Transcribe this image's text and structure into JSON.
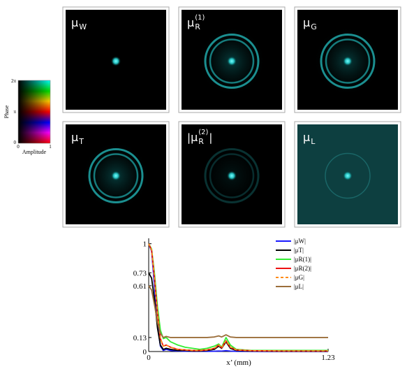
{
  "panels": [
    {
      "label": {
        "base": "μ",
        "sub": "W"
      }
    },
    {
      "label": {
        "base": "μ",
        "sub": "R",
        "sup": "(1)"
      }
    },
    {
      "label": {
        "base": "μ",
        "sub": "G"
      }
    },
    {
      "label": {
        "base": "μ",
        "sub": "T"
      }
    },
    {
      "label": {
        "open": "|",
        "base": "μ",
        "sub": "R",
        "sup": "(2)",
        "close": "|"
      }
    },
    {
      "label": {
        "base": "μ",
        "sub": "L"
      }
    }
  ],
  "colorbar": {
    "ylabel": "Phase",
    "xlabel": "Amplitude",
    "top": "2π",
    "middle": "π",
    "bottom": "0",
    "left": "0",
    "right": "1"
  },
  "chart_data": {
    "type": "line",
    "xlabel": "x’ (mm)",
    "x": [
      0,
      0.02,
      0.04,
      0.06,
      0.08,
      0.1,
      0.12,
      0.15,
      0.2,
      0.25,
      0.3,
      0.35,
      0.4,
      0.45,
      0.48,
      0.5,
      0.53,
      0.56,
      0.6,
      0.7,
      0.8,
      0.9,
      1.0,
      1.1,
      1.23
    ],
    "xlim": [
      0,
      1.23
    ],
    "xticks": [
      0,
      1.23
    ],
    "ylim": [
      0,
      1.05
    ],
    "yticks": [
      0,
      0.13,
      0.61,
      0.73,
      1
    ],
    "series": [
      {
        "name": "|μW|",
        "color": "#1a1aff",
        "values": [
          1,
          0.93,
          0.6,
          0.25,
          0.05,
          0.01,
          0.02,
          0.01,
          0.005,
          0.003,
          0.002,
          0.002,
          0.002,
          0.003,
          0.005,
          0.004,
          0.008,
          0.004,
          0.002,
          0.001,
          0,
          0,
          0,
          0,
          0
        ]
      },
      {
        "name": "|μT|",
        "color": "#000000",
        "values": [
          0.73,
          0.68,
          0.48,
          0.22,
          0.06,
          0.02,
          0.03,
          0.02,
          0.01,
          0.01,
          0.005,
          0.005,
          0.01,
          0.02,
          0.05,
          0.03,
          0.09,
          0.03,
          0.01,
          0.005,
          0.004,
          0.003,
          0.003,
          0.003,
          0.003
        ]
      },
      {
        "name": "|μR(1)|",
        "color": "#33ee33",
        "values": [
          1,
          0.95,
          0.72,
          0.42,
          0.2,
          0.12,
          0.13,
          0.09,
          0.06,
          0.04,
          0.03,
          0.02,
          0.03,
          0.05,
          0.07,
          0.04,
          0.13,
          0.06,
          0.02,
          0.01,
          0.01,
          0.01,
          0.01,
          0.01,
          0.01
        ]
      },
      {
        "name": "|μR(2)|",
        "color": "#ee1111",
        "values": [
          1,
          0.94,
          0.68,
          0.36,
          0.12,
          0.05,
          0.06,
          0.04,
          0.02,
          0.015,
          0.01,
          0.01,
          0.015,
          0.03,
          0.06,
          0.035,
          0.1,
          0.04,
          0.015,
          0.008,
          0.006,
          0.005,
          0.005,
          0.005,
          0.005
        ]
      },
      {
        "name": "|μG|",
        "color": "#ff8c1a",
        "dashed": true,
        "values": [
          1,
          0.94,
          0.67,
          0.35,
          0.12,
          0.05,
          0.06,
          0.04,
          0.02,
          0.015,
          0.01,
          0.01,
          0.015,
          0.03,
          0.06,
          0.035,
          0.1,
          0.04,
          0.015,
          0.008,
          0.006,
          0.005,
          0.005,
          0.005,
          0.005
        ]
      },
      {
        "name": "|μL|",
        "color": "#9b6e3a",
        "values": [
          0.61,
          0.57,
          0.43,
          0.27,
          0.17,
          0.13,
          0.14,
          0.13,
          0.13,
          0.13,
          0.13,
          0.13,
          0.13,
          0.135,
          0.145,
          0.135,
          0.155,
          0.135,
          0.13,
          0.13,
          0.13,
          0.13,
          0.13,
          0.13,
          0.13
        ]
      }
    ]
  }
}
